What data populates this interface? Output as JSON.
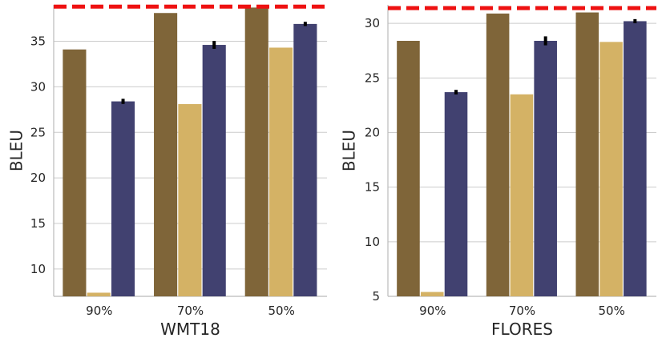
{
  "chart_data": [
    {
      "type": "bar",
      "title": "",
      "xlabel": "WMT18",
      "ylabel": "BLEU",
      "categories": [
        "90%",
        "70%",
        "50%"
      ],
      "ylim": [
        7,
        39
      ],
      "yticks": [
        10,
        15,
        20,
        25,
        30,
        35
      ],
      "reference_line": 38.8,
      "series": [
        {
          "name": "series-1",
          "color": "#7f6539",
          "values": [
            34.1,
            38.1,
            38.7
          ]
        },
        {
          "name": "series-2",
          "color": "#d4b265",
          "values": [
            7.4,
            28.1,
            34.3
          ]
        },
        {
          "name": "series-3",
          "color": "#414170",
          "values": [
            28.4,
            34.6,
            36.9
          ],
          "errors": [
            0.15,
            0.3,
            0.1
          ]
        }
      ]
    },
    {
      "type": "bar",
      "title": "",
      "xlabel": "FLORES",
      "ylabel": "BLEU",
      "categories": [
        "90%",
        "70%",
        "50%"
      ],
      "ylim": [
        5,
        31.7
      ],
      "yticks": [
        5,
        10,
        15,
        20,
        25,
        30
      ],
      "reference_line": 31.4,
      "series": [
        {
          "name": "series-1",
          "color": "#7f6539",
          "values": [
            28.4,
            30.9,
            31.0
          ]
        },
        {
          "name": "series-2",
          "color": "#d4b265",
          "values": [
            5.4,
            23.5,
            28.3
          ]
        },
        {
          "name": "series-3",
          "color": "#414170",
          "values": [
            23.7,
            28.4,
            30.2
          ],
          "errors": [
            0.1,
            0.3,
            0.08
          ]
        }
      ]
    }
  ],
  "colors": {
    "reference_line": "#ee1111",
    "error_bar": "#000000"
  }
}
